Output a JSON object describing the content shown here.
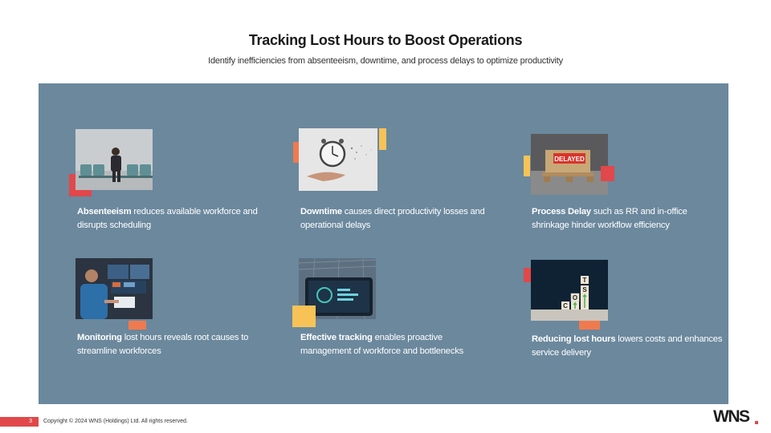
{
  "header": {
    "title": "Tracking Lost Hours to Boost Operations",
    "subtitle": "Identify inefficiencies from absenteeism, downtime, and process delays to optimize productivity"
  },
  "cards": [
    {
      "bold": "Absenteeism",
      "text": " reduces available workforce and disrupts scheduling",
      "image_icon": "person-in-waiting-room-icon"
    },
    {
      "bold": "Downtime",
      "text": " causes direct productivity losses and operational delays",
      "image_icon": "floating-clock-icon"
    },
    {
      "bold": "Process Delay",
      "text": " such as RR and in-office shrinkage hinder workflow efficiency",
      "image_icon": "delayed-pallet-icon",
      "image_label": "DELAYED"
    },
    {
      "bold": "Monitoring",
      "text": "  lost hours reveals root causes to streamline workforces",
      "image_icon": "person-at-monitors-icon"
    },
    {
      "bold": "Effective tracking",
      "text": " enables proactive management of workforce and bottlenecks",
      "image_icon": "dashboard-tablet-icon"
    },
    {
      "bold": "Reducing lost hours",
      "text": " lowers costs and enhances service delivery",
      "image_icon": "cost-blocks-icon",
      "image_letters": [
        "C",
        "O",
        "S",
        "T"
      ]
    }
  ],
  "footer": {
    "page_number": "3",
    "copyright": "Copyright © 2024 WNS (Holdings) Ltd. All rights reserved.",
    "logo": "WNS"
  },
  "colors": {
    "panel": "#6b889d",
    "accent_red": "#e0484b",
    "accent_orange": "#f07a4e",
    "accent_yellow": "#f7c356"
  }
}
